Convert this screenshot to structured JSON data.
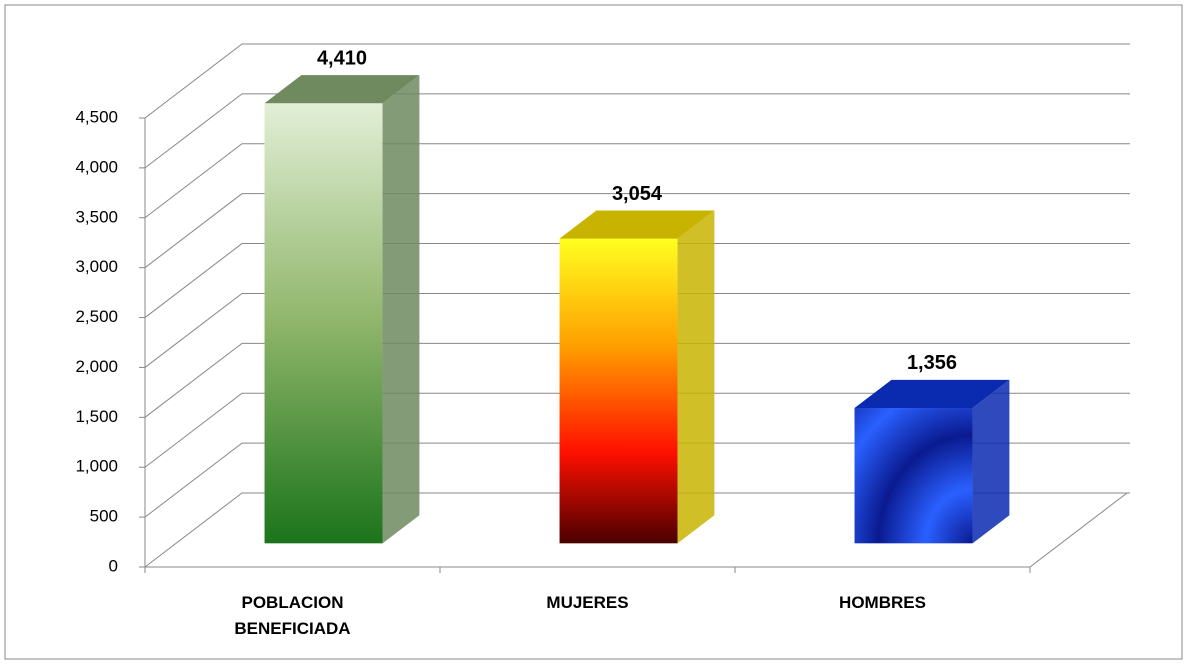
{
  "chart_data": {
    "type": "bar3d",
    "categories": [
      "POBLACION BENEFICIADA",
      "MUJERES",
      "HOMBRES"
    ],
    "values": [
      4410,
      3054,
      1356
    ],
    "value_labels": [
      "4,410",
      "3,054",
      "1,356"
    ],
    "colors": [
      "#6f8a5f",
      "#c8b400",
      "#0a2ab0"
    ],
    "ylim": [
      0,
      4500
    ],
    "yticks": [
      0,
      500,
      {
        "value": 1000,
        "label": "1,000"
      },
      {
        "value": 1500,
        "label": "1,500"
      },
      {
        "value": 2000,
        "label": "2,000"
      },
      {
        "value": 2500,
        "label": "2,500"
      },
      {
        "value": 3000,
        "label": "3,000"
      },
      {
        "value": 3500,
        "label": "3,500"
      },
      {
        "value": 4000,
        "label": "4,000"
      },
      {
        "value": 4500,
        "label": "4,500"
      }
    ],
    "grid": true
  }
}
